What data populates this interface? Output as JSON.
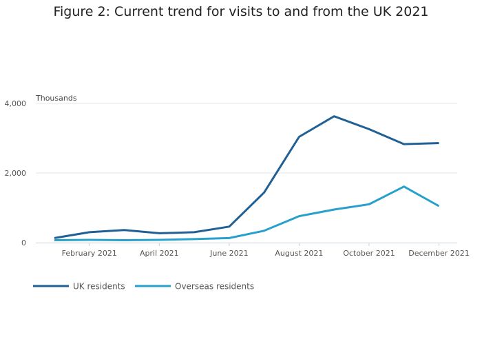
{
  "chart_data": {
    "type": "line",
    "title": "Figure 2: Current trend for visits to and from the UK 2021",
    "ylabel": "Thousands",
    "xlabel": "",
    "x": [
      "Jan 2021",
      "Feb 2021",
      "Mar 2021",
      "Apr 2021",
      "May 2021",
      "Jun 2021",
      "Jul 2021",
      "Aug 2021",
      "Sep 2021",
      "Oct 2021",
      "Nov 2021",
      "Dec 2021"
    ],
    "x_tick_labels": [
      {
        "index": 1,
        "label": "February 2021"
      },
      {
        "index": 3,
        "label": "April 2021"
      },
      {
        "index": 5,
        "label": "June 2021"
      },
      {
        "index": 7,
        "label": "August 2021"
      },
      {
        "index": 9,
        "label": "October 2021"
      },
      {
        "index": 11,
        "label": "December 2021"
      }
    ],
    "y_ticks": [
      {
        "value": 0,
        "label": "0"
      },
      {
        "value": 2000,
        "label": "2,000"
      },
      {
        "value": 4000,
        "label": "4,000"
      }
    ],
    "ylim": [
      0,
      4000
    ],
    "grid": true,
    "legend_position": "bottom-left",
    "series": [
      {
        "name": "UK residents",
        "color": "#206095",
        "values": [
          130,
          300,
          360,
          270,
          300,
          460,
          1440,
          3040,
          3630,
          3260,
          2830,
          2860
        ]
      },
      {
        "name": "Overseas residents",
        "color": "#27a0cc",
        "values": [
          70,
          80,
          70,
          80,
          100,
          130,
          340,
          760,
          950,
          1100,
          1610,
          1050
        ]
      }
    ]
  }
}
